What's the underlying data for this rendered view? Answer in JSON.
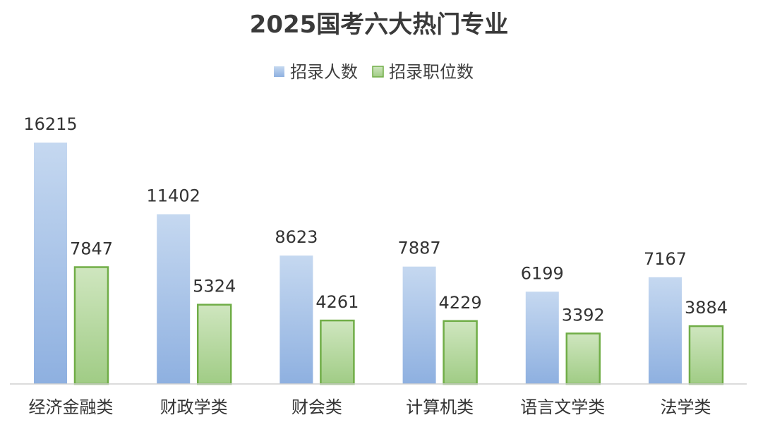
{
  "chart_data": {
    "type": "bar",
    "title": "2025国考六大热门专业",
    "categories": [
      "经济金融类",
      "财政学类",
      "财会类",
      "计算机类",
      "语言文学类",
      "法学类"
    ],
    "series": [
      {
        "name": "招录人数",
        "values": [
          16215,
          11402,
          8623,
          7887,
          6199,
          7167
        ],
        "color": "#9dbde6",
        "color_light": "#c5d8f0",
        "color_dark": "#8eb0e0"
      },
      {
        "name": "招录职位数",
        "values": [
          7847,
          5324,
          4261,
          4229,
          3392,
          3884
        ],
        "color": "#a8d08d",
        "color_light": "#cfe6bf",
        "color_dark": "#a0cc85",
        "stroke": "#70ad47"
      }
    ],
    "ylim": [
      0,
      17500
    ],
    "grid": false,
    "legend_position": "top",
    "data_labels": true,
    "axis_line_color": "#d0d0d0"
  }
}
